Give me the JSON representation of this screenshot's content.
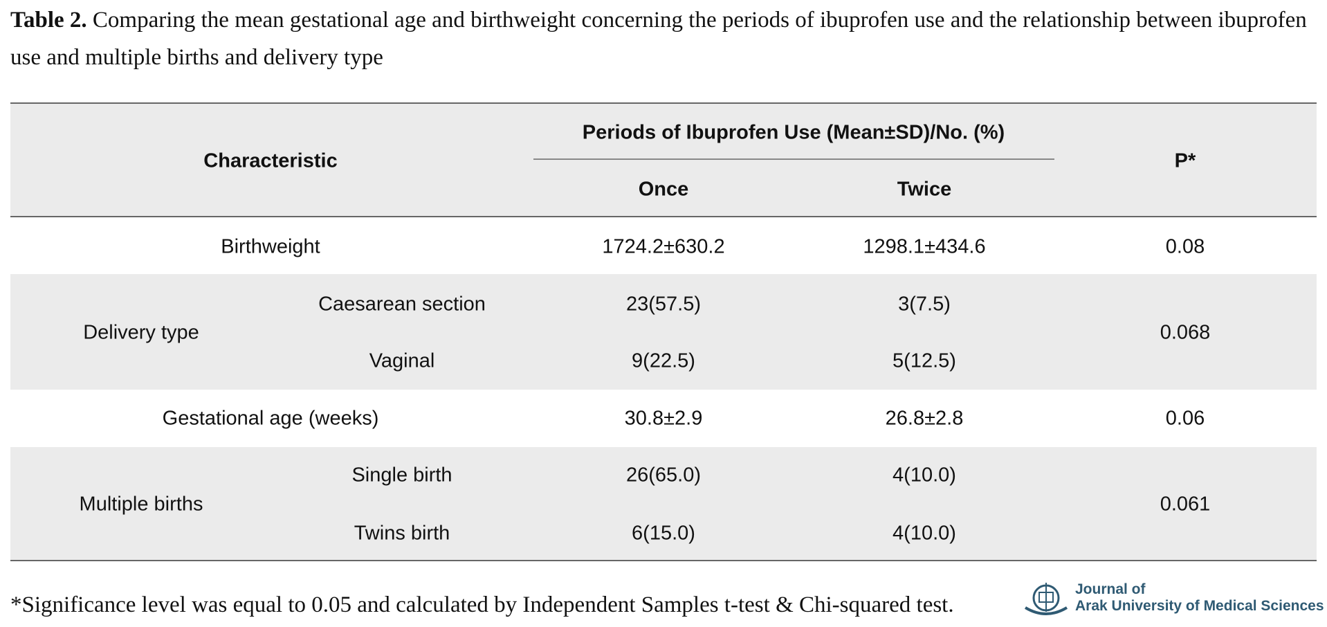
{
  "caption": {
    "label": "Table 2.",
    "text": "Comparing the mean gestational age and birthweight concerning the periods of ibuprofen use and the relationship between ibuprofen use and multiple births and delivery type"
  },
  "table": {
    "header": {
      "characteristic": "Characteristic",
      "group": "Periods of Ibuprofen Use (Mean±SD)/No. (%)",
      "columns": [
        "Once",
        "Twice"
      ],
      "p": "P*"
    },
    "rows": [
      {
        "label": "Birthweight",
        "once": "1724.2±630.2",
        "twice": "1298.1±434.6",
        "p": "0.08"
      },
      {
        "label": "Delivery type",
        "sub": [
          {
            "label": "Caesarean section",
            "once": "23(57.5)",
            "twice": "3(7.5)"
          },
          {
            "label": "Vaginal",
            "once": "9(22.5)",
            "twice": "5(12.5)"
          }
        ],
        "p": "0.068"
      },
      {
        "label": "Gestational age (weeks)",
        "once": "30.8±2.9",
        "twice": "26.8±2.8",
        "p": "0.06"
      },
      {
        "label": "Multiple births",
        "sub": [
          {
            "label": "Single birth",
            "once": "26(65.0)",
            "twice": "4(10.0)"
          },
          {
            "label": "Twins birth",
            "once": "6(15.0)",
            "twice": "4(10.0)"
          }
        ],
        "p": "0.061"
      }
    ]
  },
  "footnote": "*Significance level was equal to 0.05 and calculated by Independent Samples t-test & Chi-squared test.",
  "logo": {
    "line1": "Journal of",
    "line2": "Arak University of Medical Sciences"
  }
}
